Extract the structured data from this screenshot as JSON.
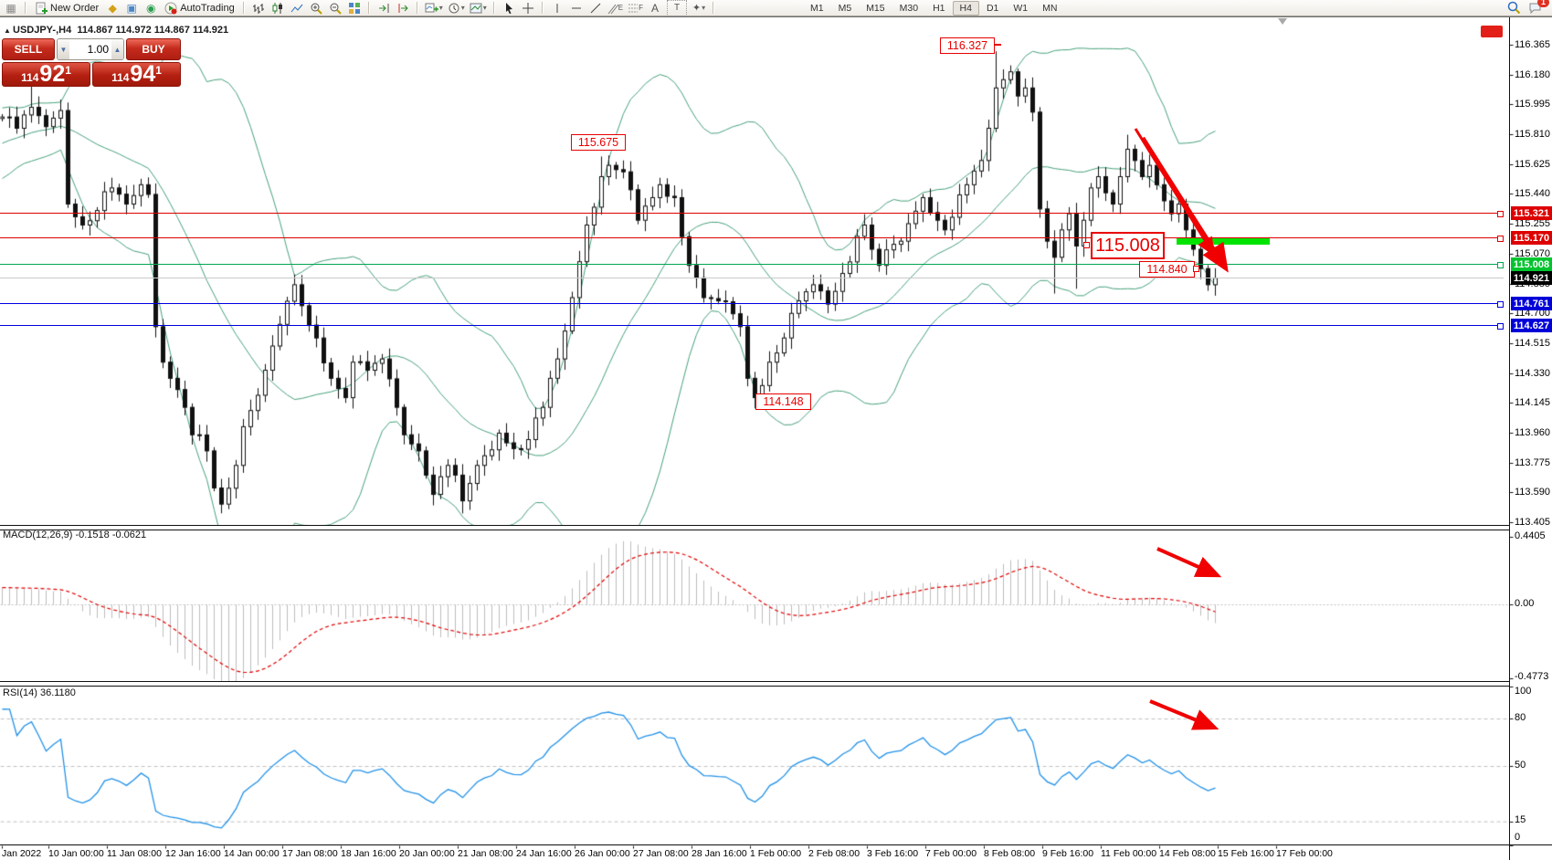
{
  "toolbar": {
    "new_order": "New Order",
    "autotrading": "AutoTrading",
    "timeframes": [
      "M1",
      "M5",
      "M15",
      "M30",
      "H1",
      "H4",
      "D1",
      "W1",
      "MN"
    ],
    "active_timeframe": "H4",
    "notification_count": "1",
    "channel_glyph": "E",
    "fibonacci_glyph": "F",
    "text_glyph": "A",
    "label_glyph": "T",
    "arrows_glyph": "✦"
  },
  "window": {
    "symbol_title": "USDJPY-,H4",
    "ohlc_values": "114.867 114.972 114.867 114.921"
  },
  "trade_panel": {
    "sell_label": "SELL",
    "buy_label": "BUY",
    "volume": "1.00",
    "sell_price_prefix": "114",
    "sell_price_big": "92",
    "sell_price_sup": "1",
    "buy_price_prefix": "114",
    "buy_price_big": "94",
    "buy_price_sup": "1"
  },
  "price_axis": {
    "top_price": 116.365,
    "tick_step": 0.185,
    "ticks": [
      "116.365",
      "116.180",
      "115.995",
      "115.810",
      "115.625",
      "115.440",
      "115.255",
      "115.070",
      "114.885",
      "114.700",
      "114.515",
      "114.330",
      "114.145",
      "113.960",
      "113.775",
      "113.590",
      "113.405"
    ]
  },
  "price_lines": [
    {
      "label": "115.321",
      "price": 115.321,
      "line": "#dd0000",
      "tag": "#dd0000",
      "handle": true
    },
    {
      "label": "115.170",
      "price": 115.17,
      "line": "#dd0000",
      "tag": "#dd0000",
      "handle": true
    },
    {
      "label": "115.008",
      "price": 115.008,
      "line": "#00a650",
      "tag": "#00c42e",
      "handle": true
    },
    {
      "label": "114.921",
      "price": 114.921,
      "line": "#c9c9c9",
      "tag": "#000000",
      "handle": false
    },
    {
      "label": "114.761",
      "price": 114.761,
      "line": "#0000e0",
      "tag": "#0000d8",
      "handle": true
    },
    {
      "label": "114.627",
      "price": 114.627,
      "line": "#0000e0",
      "tag": "#0000d8",
      "handle": true
    }
  ],
  "callouts": [
    {
      "text": "116.327"
    },
    {
      "text": "115.675"
    },
    {
      "text": "115.008"
    },
    {
      "text": "114.840"
    },
    {
      "text": "114.148"
    }
  ],
  "macd_panel": {
    "label": "MACD(12,26,9) -0.1518 -0.0621",
    "scale": [
      "0.4405",
      "0.00",
      "-0.4773"
    ],
    "fast": 12,
    "slow": 26,
    "signal": 9,
    "current_macd": -0.1518,
    "current_signal": -0.0621
  },
  "rsi_panel": {
    "label": "RSI(14) 36.1180",
    "levels": [
      "100",
      "80",
      "50",
      "15",
      "0"
    ],
    "period": 14,
    "current_value": 36.118
  },
  "time_axis": [
    "Jan 2022",
    "10 Jan 00:00",
    "11 Jan 08:00",
    "12 Jan 16:00",
    "14 Jan 00:00",
    "17 Jan 08:00",
    "18 Jan 16:00",
    "20 Jan 00:00",
    "21 Jan 08:00",
    "24 Jan 16:00",
    "26 Jan 00:00",
    "27 Jan 08:00",
    "28 Jan 16:00",
    "1 Feb 00:00",
    "2 Feb 08:00",
    "3 Feb 16:00",
    "7 Feb 00:00",
    "8 Feb 08:00",
    "9 Feb 16:00",
    "11 Feb 00:00",
    "14 Feb 08:00",
    "15 Feb 16:00",
    "17 Feb 00:00"
  ],
  "chart_data": {
    "type": "candlestick",
    "symbol": "USDJPY",
    "timeframe": "H4",
    "price_range": [
      113.405,
      116.365
    ],
    "bars": 167,
    "close_keyframes": [
      [
        0,
        115.92
      ],
      [
        2,
        115.85
      ],
      [
        4,
        115.98
      ],
      [
        6,
        115.86
      ],
      [
        8,
        115.96
      ],
      [
        9,
        115.38
      ],
      [
        11,
        115.25
      ],
      [
        13,
        115.34
      ],
      [
        15,
        115.48
      ],
      [
        17,
        115.38
      ],
      [
        19,
        115.5
      ],
      [
        20,
        115.44
      ],
      [
        21,
        114.62
      ],
      [
        22,
        114.4
      ],
      [
        23,
        114.3
      ],
      [
        25,
        114.12
      ],
      [
        26,
        113.95
      ],
      [
        28,
        113.85
      ],
      [
        29,
        113.62
      ],
      [
        30,
        113.52
      ],
      [
        32,
        113.76
      ],
      [
        33,
        114.0
      ],
      [
        34,
        114.1
      ],
      [
        36,
        114.35
      ],
      [
        37,
        114.5
      ],
      [
        40,
        114.88
      ],
      [
        41,
        114.75
      ],
      [
        43,
        114.55
      ],
      [
        45,
        114.3
      ],
      [
        47,
        114.18
      ],
      [
        48,
        114.4
      ],
      [
        50,
        114.35
      ],
      [
        52,
        114.42
      ],
      [
        54,
        114.12
      ],
      [
        55,
        113.95
      ],
      [
        57,
        113.85
      ],
      [
        58,
        113.7
      ],
      [
        59,
        113.58
      ],
      [
        61,
        113.76
      ],
      [
        62,
        113.7
      ],
      [
        63,
        113.54
      ],
      [
        65,
        113.76
      ],
      [
        66,
        113.82
      ],
      [
        68,
        113.96
      ],
      [
        69,
        113.9
      ],
      [
        71,
        113.86
      ],
      [
        72,
        113.92
      ],
      [
        74,
        114.12
      ],
      [
        76,
        114.42
      ],
      [
        78,
        114.8
      ],
      [
        80,
        115.25
      ],
      [
        82,
        115.55
      ],
      [
        83,
        115.62
      ],
      [
        85,
        115.58
      ],
      [
        87,
        115.28
      ],
      [
        89,
        115.42
      ],
      [
        90,
        115.5
      ],
      [
        92,
        115.42
      ],
      [
        94,
        115.0
      ],
      [
        96,
        114.8
      ],
      [
        98,
        114.78
      ],
      [
        100,
        114.7
      ],
      [
        101,
        114.62
      ],
      [
        102,
        114.3
      ],
      [
        103,
        114.18
      ],
      [
        105,
        114.4
      ],
      [
        107,
        114.55
      ],
      [
        109,
        114.78
      ],
      [
        111,
        114.88
      ],
      [
        113,
        114.76
      ],
      [
        115,
        114.95
      ],
      [
        117,
        115.18
      ],
      [
        118,
        115.25
      ],
      [
        119,
        115.1
      ],
      [
        120,
        115.0
      ],
      [
        123,
        115.15
      ],
      [
        126,
        115.42
      ],
      [
        129,
        115.22
      ],
      [
        132,
        115.5
      ],
      [
        134,
        115.65
      ],
      [
        135,
        115.85
      ],
      [
        136,
        116.1
      ],
      [
        138,
        116.2
      ],
      [
        139,
        116.05
      ],
      [
        140,
        116.1
      ],
      [
        141,
        115.95
      ],
      [
        142,
        115.35
      ],
      [
        143,
        115.15
      ],
      [
        144,
        115.05
      ],
      [
        145,
        115.22
      ],
      [
        146,
        115.32
      ],
      [
        147,
        115.12
      ],
      [
        148,
        115.28
      ],
      [
        149,
        115.48
      ],
      [
        150,
        115.55
      ],
      [
        151,
        115.45
      ],
      [
        152,
        115.38
      ],
      [
        153,
        115.55
      ],
      [
        154,
        115.72
      ],
      [
        155,
        115.65
      ],
      [
        156,
        115.55
      ],
      [
        157,
        115.62
      ],
      [
        158,
        115.5
      ],
      [
        159,
        115.4
      ],
      [
        160,
        115.32
      ],
      [
        161,
        115.38
      ],
      [
        162,
        115.22
      ],
      [
        163,
        115.1
      ],
      [
        164,
        114.98
      ],
      [
        165,
        114.88
      ],
      [
        166,
        114.921
      ]
    ],
    "high_overrides": {
      "4": 116.12,
      "82": 115.675,
      "136": 116.327,
      "138": 116.24,
      "154": 115.81
    },
    "low_overrides": {
      "30": 113.463,
      "63": 113.462,
      "103": 114.113,
      "144": 114.825,
      "147": 114.855,
      "165": 114.842
    },
    "bollinger": {
      "period": 20,
      "deviation": 2
    },
    "indicators": [
      "Bollinger Bands",
      "MACD(12,26,9)",
      "RSI(14)"
    ]
  }
}
